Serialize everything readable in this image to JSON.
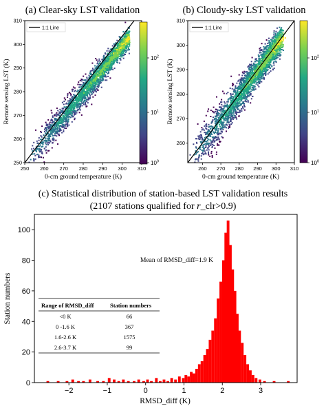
{
  "panels": {
    "a_title": "(a) Clear-sky LST validation",
    "b_title": "(b) Cloudy-sky LST validation",
    "c_title_line1": "(c) Statistical distribution of station-based LST validation results",
    "c_title_line2_pre": "(2107 stations qualified for ",
    "c_title_line2_var": "r",
    "c_title_line2_post": "_clr>0.9)"
  },
  "chart_data": [
    {
      "type": "heatmap",
      "title": "(a) Clear-sky LST validation",
      "xlabel": "0-cm ground temperature (K)",
      "ylabel": "Remote sensing LST (K)",
      "xlim": [
        250,
        310
      ],
      "ylim": [
        250,
        310
      ],
      "xticks": [
        250,
        260,
        270,
        280,
        290,
        300,
        310
      ],
      "yticks": [
        250,
        260,
        270,
        280,
        290,
        300,
        310
      ],
      "legend": [
        "1:1 Line"
      ],
      "legend_position": "top-left",
      "colorbar": {
        "scale": "log",
        "ticks": [
          "10^0",
          "10^1",
          "10^2"
        ],
        "colormap": "viridis"
      }
    },
    {
      "type": "heatmap",
      "title": "(b) Cloudy-sky LST validation",
      "xlabel": "0-cm ground temperature (K)",
      "ylabel": "Remote sensing LST (K)",
      "xlim": [
        252,
        310
      ],
      "ylim": [
        252,
        310
      ],
      "xticks": [
        260,
        270,
        280,
        290,
        300,
        310
      ],
      "yticks": [
        260,
        270,
        280,
        290,
        300,
        310
      ],
      "legend": [
        "1:1 Line"
      ],
      "legend_position": "top-left",
      "colorbar": {
        "scale": "log",
        "ticks": [
          "10^0",
          "10^1",
          "10^2"
        ],
        "colormap": "viridis"
      }
    },
    {
      "type": "bar",
      "title": "(c) Statistical distribution of station-based LST validation results",
      "xlabel": "RMSD_diff (K)",
      "ylabel": "Station numbers",
      "xlim": [
        -2.9,
        3.95
      ],
      "ylim": [
        0,
        110
      ],
      "xticks": [
        -2,
        -1,
        0,
        1,
        2,
        3
      ],
      "yticks": [
        0,
        20,
        40,
        60,
        80,
        100
      ],
      "bar_color": "#ff0000",
      "annotation": "Mean of RMSD_diff=1.9 K",
      "histogram": [
        {
          "x": -2.55,
          "y": 1
        },
        {
          "x": -2.28,
          "y": 1
        },
        {
          "x": -2.05,
          "y": 1
        },
        {
          "x": -1.9,
          "y": 2
        },
        {
          "x": -1.75,
          "y": 1
        },
        {
          "x": -1.62,
          "y": 1
        },
        {
          "x": -1.45,
          "y": 2
        },
        {
          "x": -1.25,
          "y": 1
        },
        {
          "x": -1.1,
          "y": 1
        },
        {
          "x": -0.95,
          "y": 3
        },
        {
          "x": -0.82,
          "y": 2
        },
        {
          "x": -0.7,
          "y": 1
        },
        {
          "x": -0.58,
          "y": 2
        },
        {
          "x": -0.45,
          "y": 1
        },
        {
          "x": -0.3,
          "y": 1
        },
        {
          "x": -0.18,
          "y": 2
        },
        {
          "x": -0.05,
          "y": 1
        },
        {
          "x": 0.05,
          "y": 2
        },
        {
          "x": 0.15,
          "y": 1
        },
        {
          "x": 0.28,
          "y": 3
        },
        {
          "x": 0.38,
          "y": 1
        },
        {
          "x": 0.48,
          "y": 2
        },
        {
          "x": 0.58,
          "y": 1
        },
        {
          "x": 0.68,
          "y": 3
        },
        {
          "x": 0.78,
          "y": 2
        },
        {
          "x": 0.88,
          "y": 4
        },
        {
          "x": 0.98,
          "y": 3
        },
        {
          "x": 1.05,
          "y": 5
        },
        {
          "x": 1.12,
          "y": 4
        },
        {
          "x": 1.19,
          "y": 7
        },
        {
          "x": 1.26,
          "y": 6
        },
        {
          "x": 1.33,
          "y": 9
        },
        {
          "x": 1.4,
          "y": 12
        },
        {
          "x": 1.47,
          "y": 14
        },
        {
          "x": 1.54,
          "y": 18
        },
        {
          "x": 1.61,
          "y": 22
        },
        {
          "x": 1.68,
          "y": 28
        },
        {
          "x": 1.75,
          "y": 34
        },
        {
          "x": 1.82,
          "y": 42
        },
        {
          "x": 1.89,
          "y": 55
        },
        {
          "x": 1.96,
          "y": 66
        },
        {
          "x": 2.03,
          "y": 80
        },
        {
          "x": 2.09,
          "y": 98
        },
        {
          "x": 2.15,
          "y": 106
        },
        {
          "x": 2.21,
          "y": 90
        },
        {
          "x": 2.27,
          "y": 74
        },
        {
          "x": 2.33,
          "y": 60
        },
        {
          "x": 2.39,
          "y": 45
        },
        {
          "x": 2.45,
          "y": 34
        },
        {
          "x": 2.52,
          "y": 26
        },
        {
          "x": 2.59,
          "y": 18
        },
        {
          "x": 2.66,
          "y": 12
        },
        {
          "x": 2.73,
          "y": 8
        },
        {
          "x": 2.8,
          "y": 5
        },
        {
          "x": 2.88,
          "y": 3
        },
        {
          "x": 2.98,
          "y": 2
        },
        {
          "x": 3.1,
          "y": 1
        },
        {
          "x": 3.35,
          "y": 1
        },
        {
          "x": 3.72,
          "y": 1
        }
      ],
      "table": {
        "headers": [
          "Range of RMSD_diff",
          "Station numbers"
        ],
        "rows": [
          [
            "<0 K",
            "66"
          ],
          [
            "0 -1.6 K",
            "367"
          ],
          [
            "1.6-2.6 K",
            "1575"
          ],
          [
            "2.6-3.7 K",
            "99"
          ]
        ]
      }
    }
  ]
}
